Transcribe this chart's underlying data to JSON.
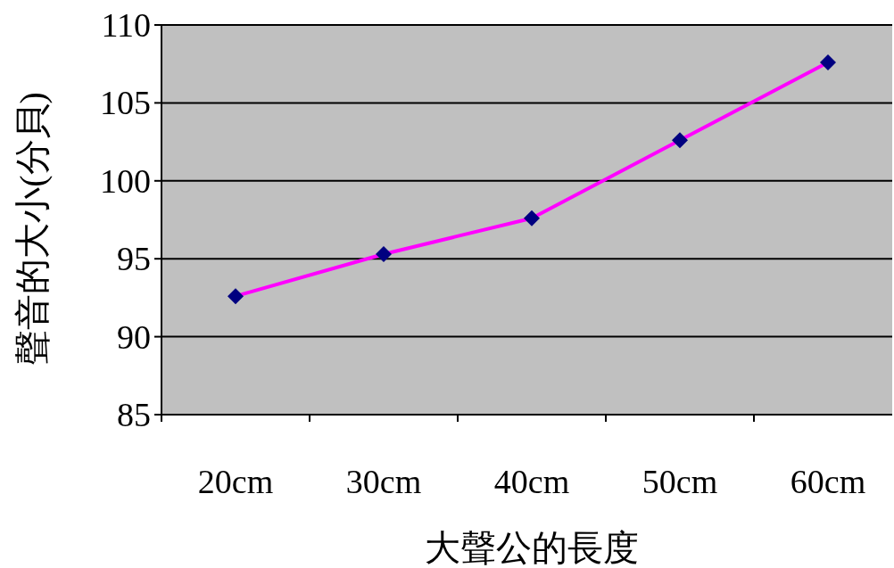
{
  "chart_data": {
    "type": "line",
    "xlabel": "大聲公的長度",
    "ylabel": "聲音的大小(分貝)",
    "categories": [
      "20cm",
      "30cm",
      "40cm",
      "50cm",
      "60cm"
    ],
    "series": [
      {
        "color": "#ff00ff",
        "values": [
          92.6,
          95.3,
          97.6,
          102.6,
          107.6
        ]
      }
    ],
    "marker": "diamond",
    "ylim": [
      85,
      110
    ],
    "yticks": [
      85,
      90,
      95,
      100,
      105,
      110
    ],
    "grid": "y"
  }
}
